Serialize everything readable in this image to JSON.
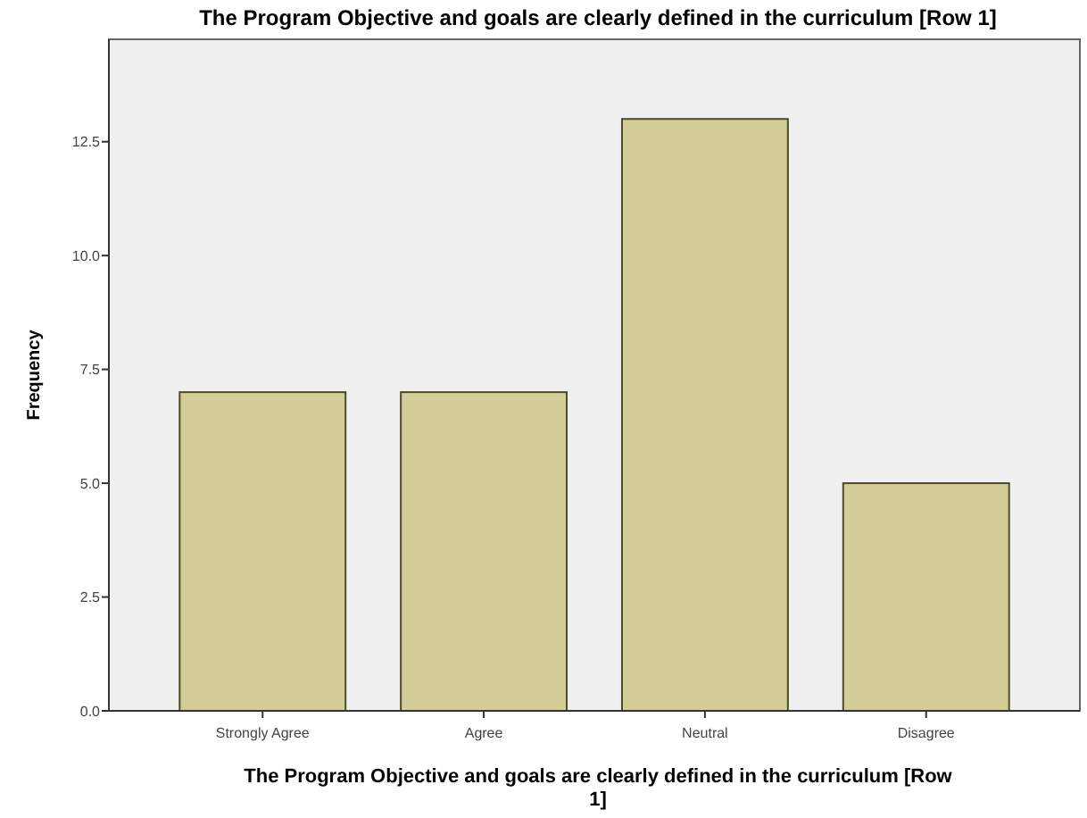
{
  "chart_data": {
    "type": "bar",
    "title": "The Program Objective and goals are clearly defined in the curriculum [Row 1]",
    "xlabel": "The Program Objective and goals are clearly defined in the curriculum [Row 1]",
    "ylabel": "Frequency",
    "categories": [
      "Strongly Agree",
      "Agree",
      "Neutral",
      "Disagree"
    ],
    "values": [
      7,
      7,
      13,
      5
    ],
    "color": "#d3ce97",
    "ylim": [
      0,
      14.75
    ],
    "yticks": [
      {
        "value": 0,
        "label": "0.0"
      },
      {
        "value": 2.5,
        "label": "2.5"
      },
      {
        "value": 5,
        "label": "5.0"
      },
      {
        "value": 7.5,
        "label": "7.5"
      },
      {
        "value": 10,
        "label": "10.0"
      },
      {
        "value": 12.5,
        "label": "12.5"
      }
    ],
    "grid": false
  }
}
